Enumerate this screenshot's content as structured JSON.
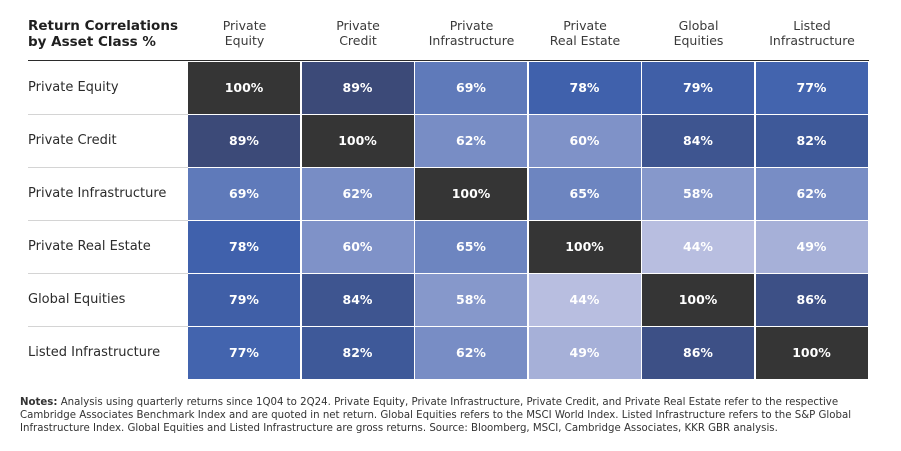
{
  "title_lines": [
    "Return Correlations",
    "by Asset Class %"
  ],
  "column_headers": [
    [
      "Private",
      "Equity"
    ],
    [
      "Private",
      "Credit"
    ],
    [
      "Private",
      "Infrastructure"
    ],
    [
      "Private",
      "Real Estate"
    ],
    [
      "Global",
      "Equities"
    ],
    [
      "Listed",
      "Infrastructure"
    ]
  ],
  "notes": {
    "label": "Notes:",
    "text": " Analysis using quarterly returns since 1Q04 to 2Q24. Private Equity, Private Infrastructure, Private Credit, and Private Real Estate refer to the respective Cambridge Associates Benchmark Index and are quoted in net return. Global Equities refers to the MSCI World Index. Listed Infrastructure refers to the S&P Global Infrastructure Index. Global Equities and Listed Infrastructure are gross returns. Source: Bloomberg, MSCI, Cambridge Associates, KKR GBR analysis."
  },
  "colors": {
    "diagonal": "#353535",
    "scale_low": "#b8bee0",
    "scale_high": "#3c4a78",
    "high_sat": "#4062ad"
  },
  "chart_data": {
    "type": "heatmap",
    "rows": [
      "Private Equity",
      "Private Credit",
      "Private Infrastructure",
      "Private Real Estate",
      "Global Equities",
      "Listed Infrastructure"
    ],
    "columns": [
      "Private Equity",
      "Private Credit",
      "Private Infrastructure",
      "Private Real Estate",
      "Global Equities",
      "Listed Infrastructure"
    ],
    "values": [
      [
        100,
        89,
        69,
        78,
        79,
        77
      ],
      [
        89,
        100,
        62,
        60,
        84,
        82
      ],
      [
        69,
        62,
        100,
        65,
        58,
        62
      ],
      [
        78,
        60,
        65,
        100,
        44,
        49
      ],
      [
        79,
        84,
        58,
        44,
        100,
        86
      ],
      [
        77,
        82,
        62,
        49,
        86,
        100
      ]
    ],
    "unit": "%"
  }
}
